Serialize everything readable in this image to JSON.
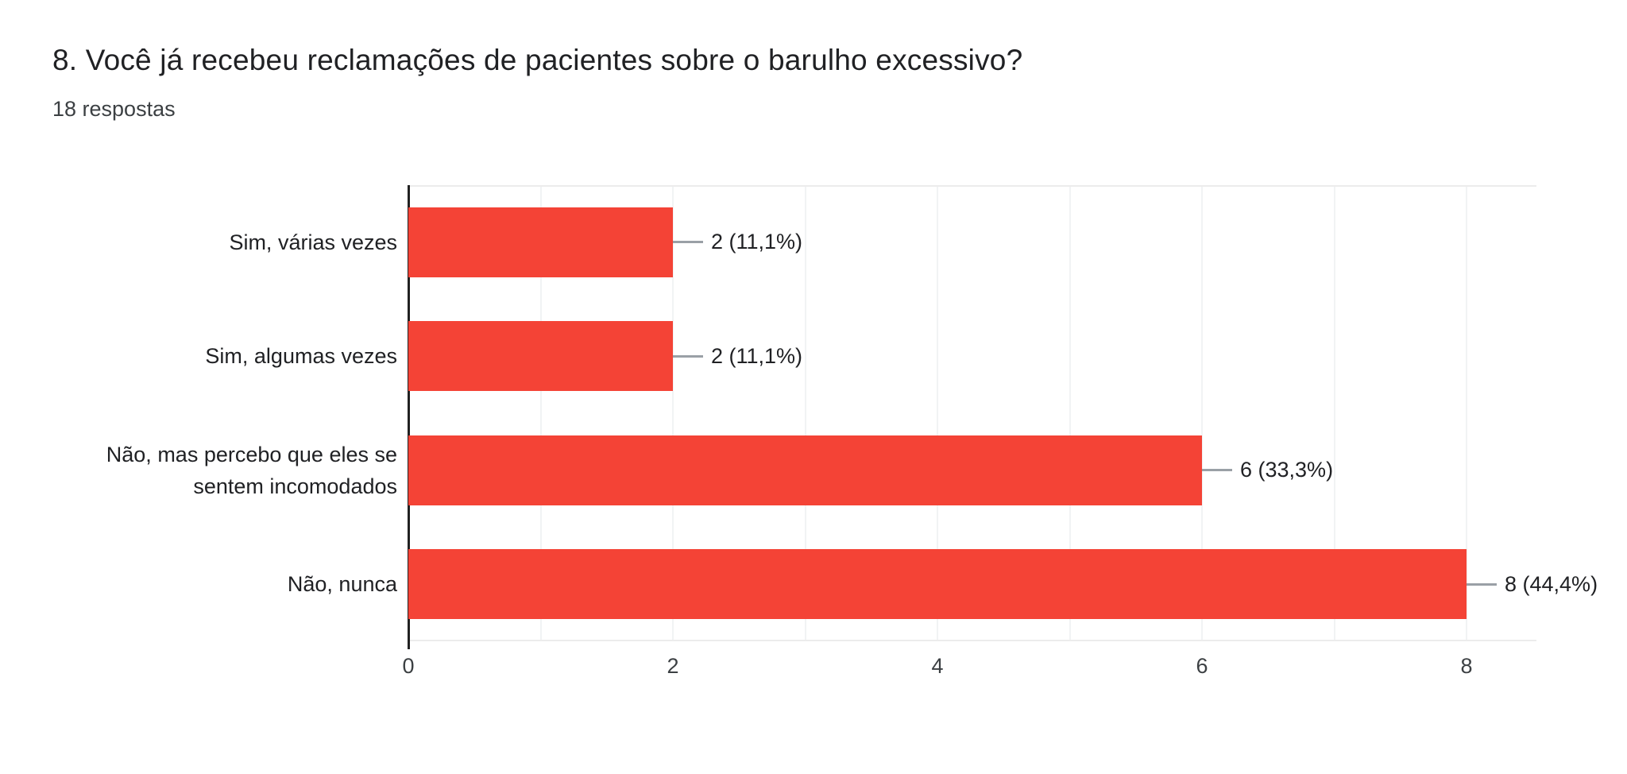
{
  "header": {
    "title": "8. Você já recebeu reclamações de pacientes sobre o barulho excessivo?",
    "responses": "18 respostas"
  },
  "chart_data": {
    "type": "bar",
    "orientation": "horizontal",
    "title": "8. Você já recebeu reclamações de pacientes sobre o barulho excessivo?",
    "subtitle": "18 respostas",
    "total_responses": 18,
    "categories": [
      "Sim, várias vezes",
      "Sim, algumas vezes",
      "Não, mas percebo que eles se sentem incomodados",
      "Não, nunca"
    ],
    "values": [
      2,
      2,
      6,
      8
    ],
    "percentages": [
      11.1,
      11.1,
      33.3,
      44.4
    ],
    "value_labels": [
      "2 (11,1%)",
      "2 (11,1%)",
      "6 (33,3%)",
      "8 (44,4%)"
    ],
    "xlabel": "",
    "ylabel": "",
    "xlim": [
      0,
      8
    ],
    "x_ticks": [
      "0",
      "2",
      "4",
      "6",
      "8"
    ],
    "grid": "vertical gridlines every 1 unit",
    "legend": "none",
    "bar_color": "#F44336",
    "axis_line_color": "#212121",
    "gridline_color": "#f1f3f4",
    "connector_color": "#9aa0a6",
    "text_color": "#202124",
    "background_color": "#ffffff"
  }
}
